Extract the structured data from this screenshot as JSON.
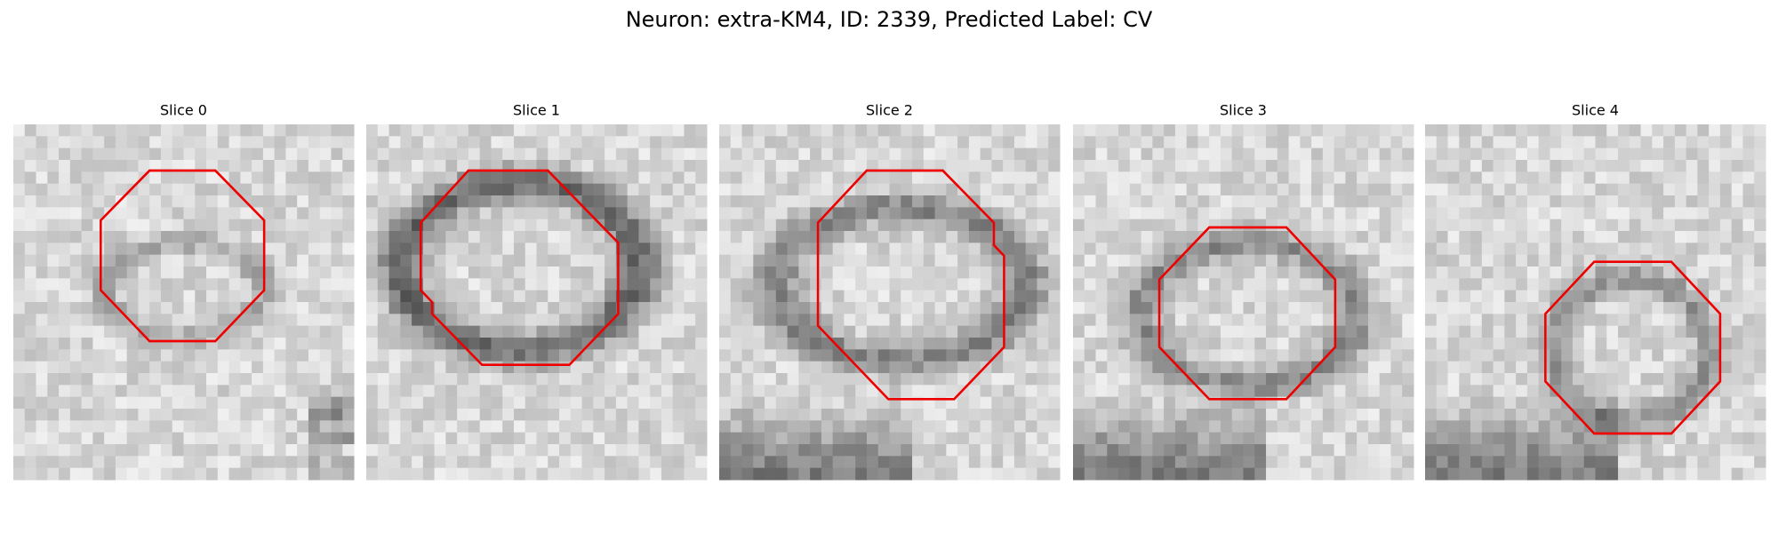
{
  "title": "Neuron: extra-KM4, ID: 2339, Predicted Label: CV",
  "panels": [
    {
      "title": "Slice 0"
    },
    {
      "title": "Slice 1"
    },
    {
      "title": "Slice 2"
    },
    {
      "title": "Slice 3"
    },
    {
      "title": "Slice 4"
    }
  ]
}
